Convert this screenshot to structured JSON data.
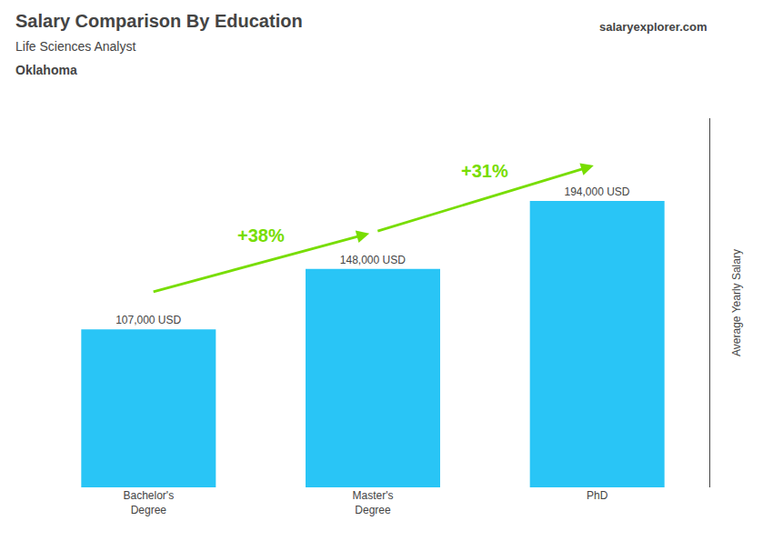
{
  "chart_data": {
    "type": "bar",
    "title": "Salary Comparison By Education",
    "subtitle": "Life Sciences Analyst",
    "location": "Oklahoma",
    "brand": "salaryexplorer.com",
    "ylabel": "Average Yearly Salary",
    "categories": [
      "Bachelor's\nDegree",
      "Master's\nDegree",
      "PhD"
    ],
    "values": [
      107000,
      148000,
      194000
    ],
    "value_labels": [
      "107,000 USD",
      "148,000 USD",
      "194,000 USD"
    ],
    "data_labels": true,
    "color": "#29C5F6",
    "ylim": [
      0,
      250000
    ],
    "tick_labels": "x",
    "grid": false,
    "annotations": [
      {
        "text": "+38%",
        "from": 0,
        "to": 1,
        "color": "#77DD00"
      },
      {
        "text": "+31%",
        "from": 1,
        "to": 2,
        "color": "#77DD00"
      }
    ]
  }
}
